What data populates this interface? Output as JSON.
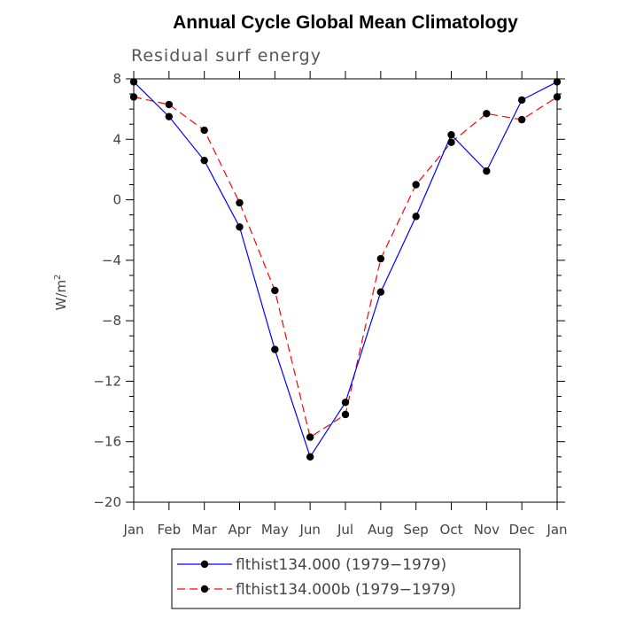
{
  "chart_data": {
    "type": "line",
    "title": "Annual Cycle Global Mean Climatology",
    "subtitle": "Residual surf energy",
    "ylabel": "W/m",
    "ylabel_sup": "2",
    "xlabel": "",
    "categories": [
      "Jan",
      "Feb",
      "Mar",
      "Apr",
      "May",
      "Jun",
      "Jul",
      "Aug",
      "Sep",
      "Oct",
      "Nov",
      "Dec",
      "Jan"
    ],
    "ylim": [
      -20,
      8
    ],
    "yticks": [
      -20,
      -16,
      -12,
      -8,
      -4,
      0,
      4,
      8
    ],
    "series": [
      {
        "name": "flthist134.000 (1979−1979)",
        "color": "#0000ff",
        "dash": "solid",
        "values": [
          7.8,
          5.5,
          2.6,
          -1.8,
          -9.9,
          -17.0,
          -13.4,
          -6.1,
          -1.1,
          4.3,
          1.9,
          6.6,
          7.8
        ]
      },
      {
        "name": "flthist134.000b (1979−1979)",
        "color": "#ff0000",
        "dash": "dashed",
        "values": [
          6.8,
          6.3,
          4.6,
          -0.2,
          -6.0,
          -15.7,
          -14.2,
          -3.9,
          1.0,
          3.8,
          5.7,
          5.3,
          6.8
        ]
      }
    ],
    "legend_position": "bottom"
  }
}
